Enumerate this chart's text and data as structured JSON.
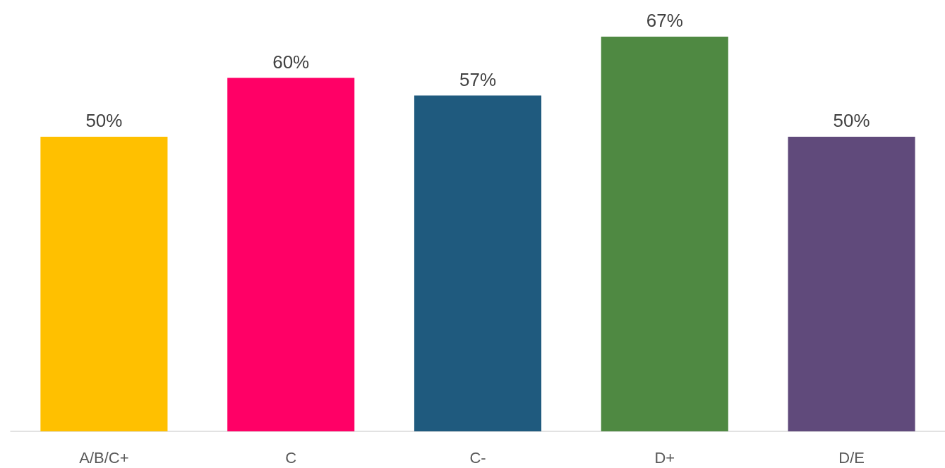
{
  "chart_data": {
    "type": "bar",
    "categories": [
      "A/B/C+",
      "C",
      "C-",
      "D+",
      "D/E"
    ],
    "values": [
      50,
      60,
      57,
      67,
      50
    ],
    "colors": [
      "#ffc000",
      "#ff0066",
      "#1f5a7e",
      "#4f8942",
      "#604a7b"
    ],
    "value_labels": [
      "50%",
      "60%",
      "57%",
      "67%",
      "50%"
    ]
  }
}
